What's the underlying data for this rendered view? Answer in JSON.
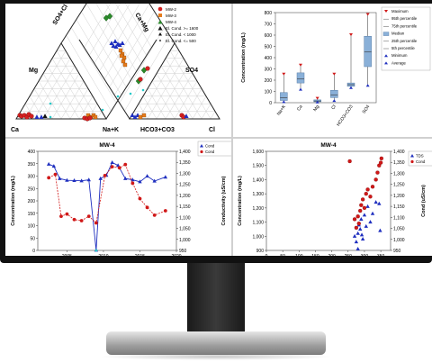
{
  "colors": {
    "mw2": "#d42020",
    "mw3": "#e57b1c",
    "mw4": "#2a8a2a",
    "blue": "#1f2fbf",
    "red": "#d01818",
    "box": "#8ab0d8",
    "cyan": "#27c9c9",
    "bezel": "#111111"
  },
  "piper": {
    "legend": [
      "MW-2",
      "MW-3",
      "MW-4",
      "El. Cond. >= 1600",
      "El. Cond. < 1000",
      "El. Cond. <= 500"
    ],
    "labels": {
      "so4cl": "SO4+Cl",
      "camg": "Ca+Mg",
      "mg": "Mg",
      "so4": "SO4",
      "ca": "Ca",
      "nak": "Na+K",
      "hco3co3": "HCO3+CO3",
      "cl": "Cl"
    }
  },
  "boxplot": {
    "chart_data": {
      "type": "box",
      "ylabel": "Concentration (mg/L)",
      "ylim": [
        0,
        800
      ],
      "yticks": [
        "0",
        "100",
        "200",
        "300",
        "400",
        "500",
        "600",
        "700",
        "800"
      ],
      "categories": [
        "Na+K",
        "Ca",
        "Mg",
        "Cl",
        "HCO3+CO3",
        "SO4"
      ],
      "boxes": [
        {
          "min": 5,
          "q1": 20,
          "median": 45,
          "q3": 90,
          "max": 250
        },
        {
          "min": 115,
          "q1": 175,
          "median": 210,
          "q3": 265,
          "max": 330
        },
        {
          "min": 2,
          "q1": 8,
          "median": 15,
          "q3": 25,
          "max": 35
        },
        {
          "min": 15,
          "q1": 45,
          "median": 70,
          "q3": 110,
          "max": 250
        },
        {
          "min": 130,
          "q1": 145,
          "median": 160,
          "q3": 175,
          "max": 600
        },
        {
          "min": 150,
          "q1": 320,
          "median": 450,
          "q3": 590,
          "max": 780
        }
      ],
      "legend": [
        "Maximum",
        "95th percentile",
        "75th percentile",
        "Median",
        "25th percentile",
        "5th percentile",
        "Minimum",
        "Average"
      ]
    }
  },
  "timeseries": {
    "chart_data": {
      "type": "line",
      "title": "MW-4",
      "ylabel": "Concentration (mg/L)",
      "y2label": "Conductivity (uS/cm)",
      "xlim": [
        2001,
        2020
      ],
      "ylim": [
        0,
        400
      ],
      "y2lim": [
        950,
        1400
      ],
      "xticks": [
        "2005",
        "2010",
        "2015",
        "2020"
      ],
      "yticks": [
        "0",
        "50",
        "100",
        "150",
        "200",
        "250",
        "300",
        "350",
        "400"
      ],
      "y2ticks": [
        "950",
        "1,000",
        "1,050",
        "1,100",
        "1,150",
        "1,200",
        "1,250",
        "1,300",
        "1,350",
        "1,400"
      ],
      "series": [
        {
          "name": "Cond",
          "axis": "y",
          "x": [
            2002.5,
            2003.2,
            2004.0,
            2005.0,
            2006.0,
            2007.0,
            2008.0,
            2009.0,
            2009.6,
            2010.4,
            2011.2,
            2012.0,
            2013.0,
            2014.0,
            2015.0,
            2016.0,
            2017.0,
            2018.5
          ],
          "values": [
            348,
            340,
            290,
            283,
            282,
            281,
            285,
            1,
            290,
            303,
            355,
            343,
            290,
            285,
            277,
            300,
            280,
            296
          ]
        },
        {
          "name": "Cond",
          "axis": "y2",
          "x": [
            2002.5,
            2003.4,
            2004.2,
            2005.0,
            2006.0,
            2007.0,
            2008.0,
            2009.0,
            2010.2,
            2011.2,
            2012.2,
            2013.0,
            2014.0,
            2015.0,
            2016.0,
            2017.0,
            2018.5
          ],
          "values": [
            1280,
            1295,
            1105,
            1115,
            1090,
            1085,
            1105,
            1075,
            1290,
            1330,
            1325,
            1340,
            1255,
            1185,
            1145,
            1110,
            1130
          ]
        }
      ],
      "legend": [
        "Cond",
        "Cond"
      ]
    }
  },
  "scatter": {
    "chart_data": {
      "type": "scatter",
      "title": "MW-4",
      "ylabel": "Concentration (mg/L)",
      "y2label": "Cond (uS/cm)",
      "xlim": [
        0,
        380
      ],
      "ylim": [
        900,
        1600
      ],
      "y2lim": [
        950,
        1400
      ],
      "xticks": [
        "0",
        "50",
        "100",
        "150",
        "200",
        "250",
        "300",
        "350"
      ],
      "yticks": [
        "900",
        "1,000",
        "1,100",
        "1,200",
        "1,300",
        "1,400",
        "1,500",
        "1,600"
      ],
      "y2ticks": [
        "950",
        "1,000",
        "1,050",
        "1,100",
        "1,150",
        "1,200",
        "1,250",
        "1,300",
        "1,350",
        "1,400"
      ],
      "series": [
        {
          "name": "TDS",
          "axis": "y",
          "x": [
            270,
            275,
            280,
            283,
            287,
            290,
            295,
            300,
            305,
            310,
            318,
            325,
            335,
            345,
            348,
            280,
            292
          ],
          "values": [
            1000,
            960,
            1020,
            1080,
            1050,
            1120,
            980,
            1150,
            1070,
            1210,
            1100,
            1160,
            1240,
            1230,
            1040,
            910,
            1010
          ]
        },
        {
          "name": "Cond",
          "axis": "y",
          "x": [
            255,
            270,
            275,
            280,
            283,
            287,
            290,
            295,
            300,
            305,
            310,
            318,
            325,
            335,
            340,
            345,
            350,
            352
          ],
          "values": [
            1530,
            1120,
            1060,
            1140,
            1090,
            1180,
            1220,
            1260,
            1200,
            1300,
            1330,
            1280,
            1350,
            1400,
            1450,
            1500,
            1520,
            1550
          ]
        }
      ],
      "legend": [
        "TDS",
        "Cond"
      ]
    }
  }
}
